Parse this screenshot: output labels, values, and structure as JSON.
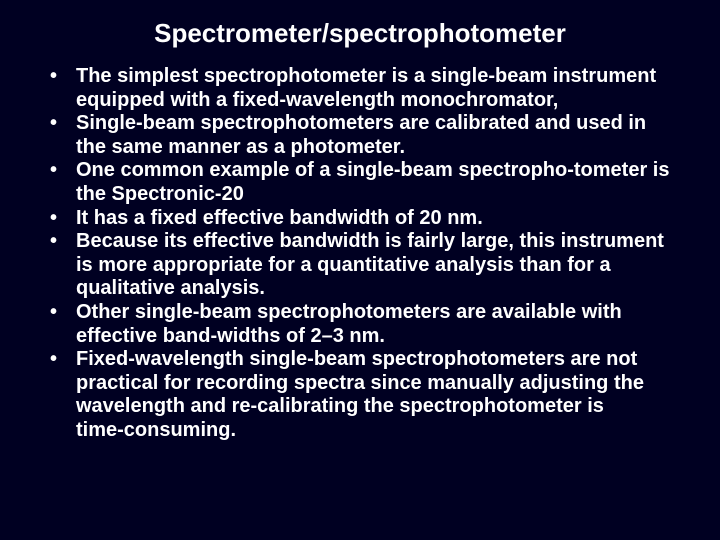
{
  "slide": {
    "background_color": "#000022",
    "text_color": "#ffffff",
    "title": "Spectrometer/spectrophotometer",
    "title_fontsize": 26,
    "title_weight": "bold",
    "bullet_fontsize": 20,
    "bullet_weight": "bold",
    "bullets": [
      "The simplest spectrophotometer is a single‑beam instrument equipped with a fixed-wavelength monochromator,",
      " Single‑beam spectrophotometers are calibrated and used in the same manner as a photometer.",
      "One common example of a single‑beam spectropho-tometer is the Spectronic‑20",
      "It has a fixed effective bandwidth of 20 nm.",
      "Because its effective bandwidth is fairly large, this instrument is more appropriate for a quantitative analysis than for a qualitative analysis.",
      "Other single‑beam spectrophotometers are available with effective band-widths of 2–3 nm.",
      "Fixed‑wavelength single‑beam spectrophotometers are not practical for recording spectra since manually adjusting the wavelength and re-calibrating the spectrophotometer is time‑consuming."
    ]
  }
}
